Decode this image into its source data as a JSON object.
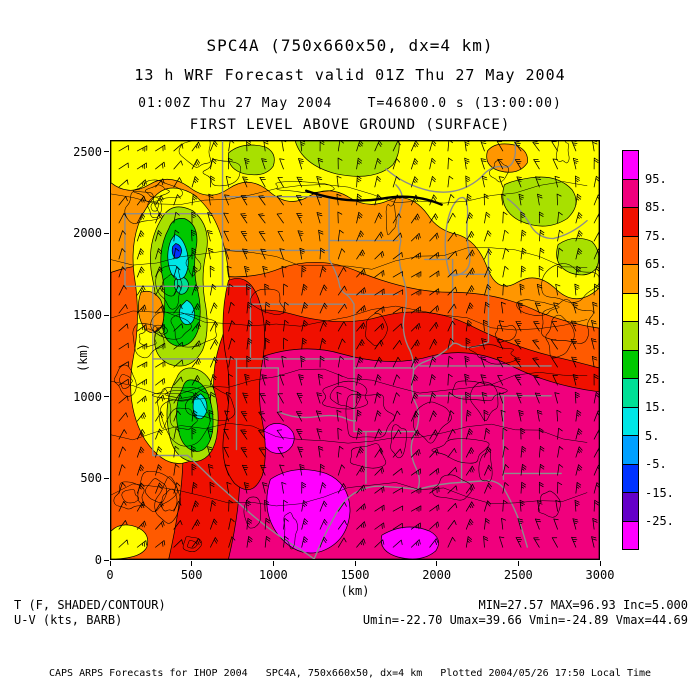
{
  "header": {
    "model_title": "SPC4A (750x660x50, dx=4 km)",
    "forecast_title": "13 h WRF Forecast valid 01Z Thu 27 May 2004",
    "time_line": "01:00Z Thu 27 May 2004    T=46800.0 s (13:00:00)",
    "level_line": "FIRST LEVEL ABOVE GROUND (SURFACE)"
  },
  "axes": {
    "xlabel": "(km)",
    "ylabel": "(km)",
    "xticks": [
      "0",
      "500",
      "1000",
      "1500",
      "2000",
      "2500",
      "3000"
    ],
    "yticks": [
      "0",
      "500",
      "1000",
      "1500",
      "2000",
      "2500"
    ]
  },
  "colorbar": {
    "labels": [
      "95.",
      "85.",
      "75.",
      "65.",
      "55.",
      "45.",
      "35.",
      "25.",
      "15.",
      "5.",
      "-5.",
      "-15.",
      "-25."
    ],
    "colors": [
      "#ff00ff",
      "#f0007d",
      "#f01000",
      "#ff5a00",
      "#ff9600",
      "#ffff00",
      "#a8e000",
      "#00c800",
      "#00e096",
      "#00e6e6",
      "#00a0ff",
      "#0032ff",
      "#6400c8",
      "#ff00ff"
    ]
  },
  "footer": {
    "field_label": "T (F, SHADED/CONTOUR)",
    "wind_label": "U-V (kts, BARB)",
    "stats_line1": "MIN=27.57 MAX=96.93 Inc=5.000",
    "stats_line2": "Umin=-22.70 Umax=39.66 Vmin=-24.89 Vmax=44.69",
    "credit": "CAPS ARPS Forecasts for IHOP 2004   SPC4A, 750x660x50, dx=4 km   Plotted 2004/05/26 17:50 Local Time"
  },
  "chart_data": {
    "type": "heatmap",
    "title": "FIRST LEVEL ABOVE GROUND (SURFACE)",
    "subtitle": "13 h WRF Forecast valid 01Z Thu 27 May 2004",
    "model": "SPC4A (750x660x50, dx=4 km)",
    "valid_time": "01:00Z Thu 27 May 2004",
    "model_time_s": 46800.0,
    "model_time_hms": "13:00:00",
    "field": "T (F, SHADED/CONTOUR)",
    "wind_field": "U-V (kts, BARB)",
    "xlabel": "(km)",
    "ylabel": "(km)",
    "xlim": [
      0,
      3000
    ],
    "ylim": [
      0,
      2570
    ],
    "xticks": [
      0,
      500,
      1000,
      1500,
      2000,
      2500,
      3000
    ],
    "yticks": [
      0,
      500,
      1000,
      1500,
      2000,
      2500
    ],
    "contour_interval": 5.0,
    "shade_levels_f": [
      95,
      85,
      75,
      65,
      55,
      45,
      35,
      25,
      15,
      5,
      -5,
      -15,
      -25
    ],
    "palette_top_to_bottom": [
      "#ff00ff",
      "#f0007d",
      "#f01000",
      "#ff5a00",
      "#ff9600",
      "#ffff00",
      "#a8e000",
      "#00c800",
      "#00e096",
      "#00e6e6",
      "#00a0ff",
      "#0032ff",
      "#6400c8",
      "#ff00ff"
    ],
    "stats": {
      "min_f": 27.57,
      "max_f": 96.93,
      "inc_f": 5.0,
      "umin_kts": -22.7,
      "umax_kts": 39.66,
      "vmin_kts": -24.89,
      "vmax_kts": 44.69
    },
    "legend_position": "right",
    "grid": false
  }
}
